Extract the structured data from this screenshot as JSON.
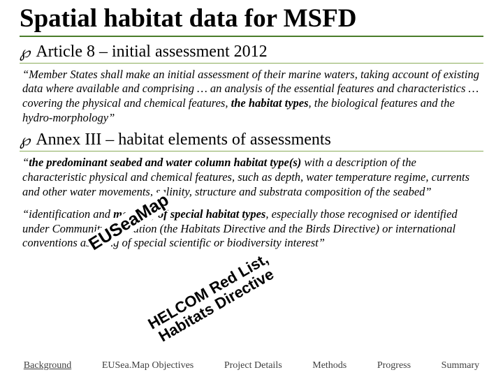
{
  "title": "Spatial habitat data for MSFD",
  "bullet_symbol": "℘",
  "article": {
    "heading": "Article 8 – initial assessment 2012",
    "para_html": "“Member States shall make an initial assessment of their marine waters, taking account of existing data where available and comprising … an analysis of the essential features and characteristics … covering the physical and chemical features, <span class=\"bold\">the habitat types</span>, the biological features and the hydro-morphology”"
  },
  "annex": {
    "heading": "Annex III – habitat elements of assessments",
    "para1_html": "“<span class=\"bold\">the predominant seabed and water column habitat type(s)</span> with a description of the characteristic physical and chemical features, such as depth, water temperature regime, currents and other water movements, salinity, structure and substrata composition of the seabed”",
    "para2_html": "“identification and <span class=\"bold\">mapping of special habitat types</span>, especially those recognised or identified under Community legislation (the Habitats Directive and the Birds Directive) or international conventions as being of special scientific or biodiversity interest”"
  },
  "overlays": {
    "map": "EUSeaMap",
    "hel_line1": "HELCOM Red List,",
    "hel_line2": "Habitats Directive"
  },
  "footer": {
    "items": [
      {
        "label": "Background",
        "active": true
      },
      {
        "label": "EUSea.Map Objectives",
        "active": false
      },
      {
        "label": "Project Details",
        "active": false
      },
      {
        "label": "Methods",
        "active": false
      },
      {
        "label": "Progress",
        "active": false
      },
      {
        "label": "Summary",
        "active": false
      }
    ]
  },
  "style": {
    "underline_green": "#4a7c2a",
    "sub_underline_green": "#8aac5a",
    "bg": "#ffffff",
    "text": "#000000",
    "footer_text": "#404040"
  }
}
